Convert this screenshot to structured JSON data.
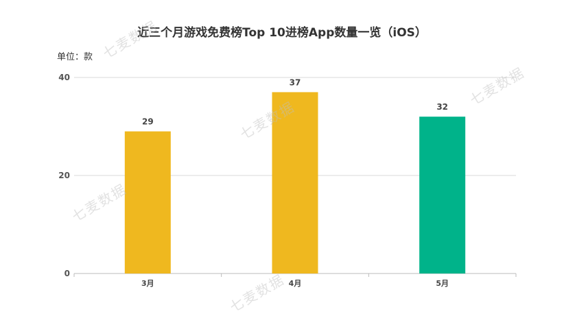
{
  "header": {
    "title": "近三个月游戏免费榜Top 10进榜App数量一览（iOS）",
    "unit_label": "单位：款"
  },
  "watermark": {
    "text": "七麦数据"
  },
  "chart_data": {
    "type": "bar",
    "title": "近三个月游戏免费榜Top 10进榜App数量一览（iOS）",
    "ylabel": "单位：款",
    "xlabel": "",
    "categories": [
      "3月",
      "4月",
      "5月"
    ],
    "values": [
      29,
      37,
      32
    ],
    "colors": [
      "#EFB81F",
      "#EFB81F",
      "#00B38A"
    ],
    "yticks": [
      0,
      20,
      40
    ],
    "ylim": [
      0,
      40
    ],
    "grid": true,
    "legend": "none"
  }
}
